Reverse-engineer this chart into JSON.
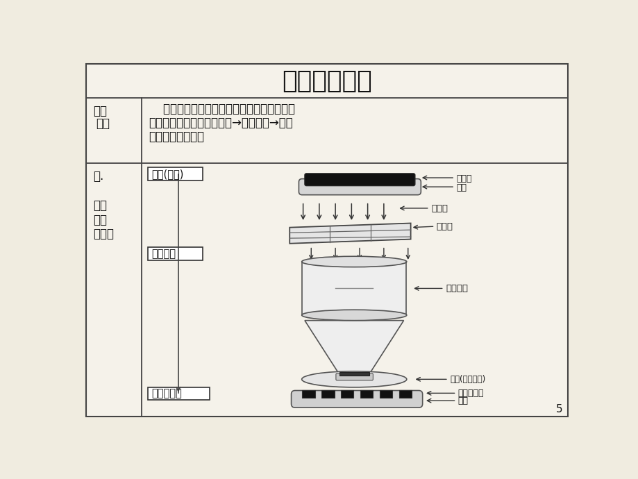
{
  "title": "光刻工艺简介",
  "bg_color": "#f0ece0",
  "inner_bg": "#f5f2ea",
  "border_color": "#444444",
  "text_color": "#111111",
  "section1_text_line1": "    光刻就是形成离子注入掩膜图形或刻蚀掩膜",
  "section1_text_line2": "图形的工序，它包括：匀胶→对准曝光→现像",
  "section1_text_line3": "与外观三个过程。",
  "label_jujiao": "匀胶(涂布)",
  "label_duizhun": "对准曝光",
  "label_xianxiang": "现像与外观",
  "annot_guangjiaosi_1": "光刻胶",
  "annot_guangjiaosi_2": "硅片",
  "annot_ziwaixian": "紫外线",
  "annot_jumoban": "掩模版",
  "annot_suoxiao": "缩小透镜",
  "annot_guipian": "硅片(每光刻胶)",
  "annot_guangke_1": "光刻胶图形",
  "annot_guangke_2": "硅片",
  "page_number": "5"
}
